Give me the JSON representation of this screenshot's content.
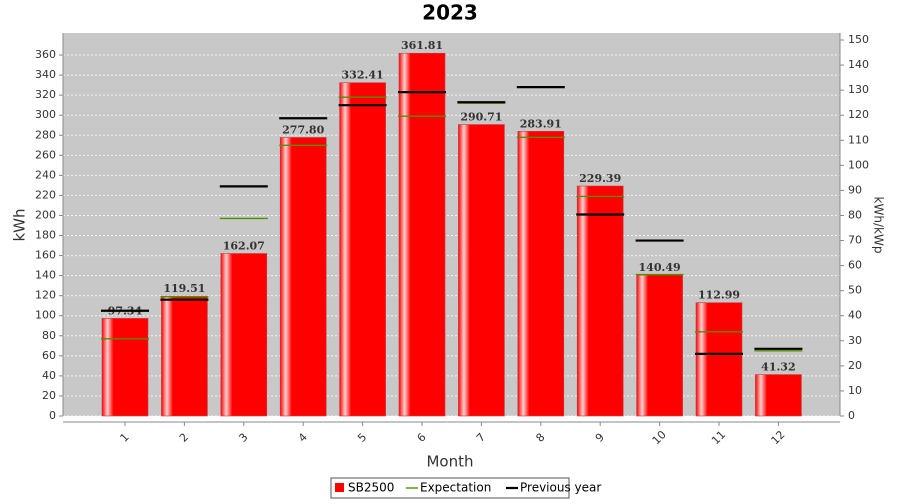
{
  "chart_data": {
    "type": "bar",
    "title": "2023",
    "x_label": "Month",
    "y_label": "kWh",
    "y2_label": "kWh/kWp",
    "categories": [
      "1",
      "2",
      "3",
      "4",
      "5",
      "6",
      "7",
      "8",
      "9",
      "10",
      "11",
      "12"
    ],
    "series": [
      {
        "name": "SB2500",
        "color": "#ff0000",
        "type": "bar",
        "values": [
          97.34,
          119.51,
          162.07,
          277.8,
          332.41,
          361.81,
          290.71,
          283.91,
          229.39,
          140.49,
          112.99,
          41.32
        ],
        "value_labels": [
          "97.34",
          "119.51",
          "162.07",
          "277.80",
          "332.41",
          "361.81",
          "290.71",
          "283.91",
          "229.39",
          "140.49",
          "112.99",
          "41.32"
        ]
      },
      {
        "name": "Expectation",
        "color": "#4f8f00",
        "type": "marker",
        "values": [
          77,
          119,
          197,
          270,
          318,
          299,
          312,
          278,
          219,
          141,
          84,
          65
        ]
      },
      {
        "name": "Previous year",
        "color": "#000000",
        "type": "marker",
        "values": [
          105,
          116,
          229,
          297,
          310,
          323,
          313,
          328,
          201,
          175,
          62,
          67
        ]
      }
    ],
    "ylim": [
      0,
      382
    ],
    "yticks": [
      0,
      20,
      40,
      60,
      80,
      100,
      120,
      140,
      160,
      180,
      200,
      220,
      240,
      260,
      280,
      300,
      320,
      340,
      360
    ],
    "y2lim": [
      0,
      152.8
    ],
    "y2ticks": [
      0,
      10,
      20,
      30,
      40,
      50,
      60,
      70,
      80,
      90,
      100,
      110,
      120,
      130,
      140,
      150
    ],
    "grid": true,
    "legend": "bottom"
  }
}
